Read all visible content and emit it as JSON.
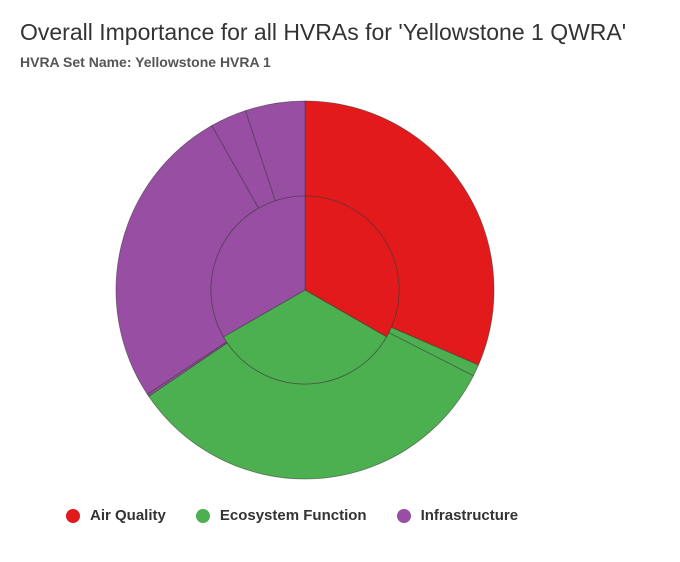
{
  "chart_data": {
    "type": "pie",
    "subtype": "nested-donut",
    "title": "Overall Importance for all HVRAs for 'Yellowstone 1 QWRA'",
    "subtitle": "HVRA Set Name: Yellowstone HVRA 1",
    "legend_placement": "bottom",
    "series": [
      {
        "ring": "inner",
        "slices": [
          {
            "label": "Air Quality",
            "value": 33.3,
            "color": "#e31a1c"
          },
          {
            "label": "Ecosystem Function",
            "value": 33.4,
            "color": "#4caf50"
          },
          {
            "label": "Infrastructure",
            "value": 33.3,
            "color": "#984ea3"
          }
        ]
      },
      {
        "ring": "outer",
        "slices": [
          {
            "label": "Air Quality",
            "value": 31.5,
            "color": "#e31a1c"
          },
          {
            "label": "Ecosystem Function",
            "value": 1.0,
            "color": "#4caf50"
          },
          {
            "label": "Ecosystem Function",
            "value": 33.0,
            "color": "#4caf50"
          },
          {
            "label": "Infrastructure",
            "value": 0.2,
            "color": "#984ea3"
          },
          {
            "label": "Infrastructure",
            "value": 26.1,
            "color": "#984ea3"
          },
          {
            "label": "Infrastructure",
            "value": 3.1,
            "color": "#984ea3"
          },
          {
            "label": "Infrastructure",
            "value": 5.1,
            "color": "#984ea3"
          }
        ]
      }
    ]
  },
  "legend": [
    {
      "label": "Air Quality",
      "color": "#e31a1c"
    },
    {
      "label": "Ecosystem Function",
      "color": "#4caf50"
    },
    {
      "label": "Infrastructure",
      "color": "#984ea3"
    }
  ]
}
